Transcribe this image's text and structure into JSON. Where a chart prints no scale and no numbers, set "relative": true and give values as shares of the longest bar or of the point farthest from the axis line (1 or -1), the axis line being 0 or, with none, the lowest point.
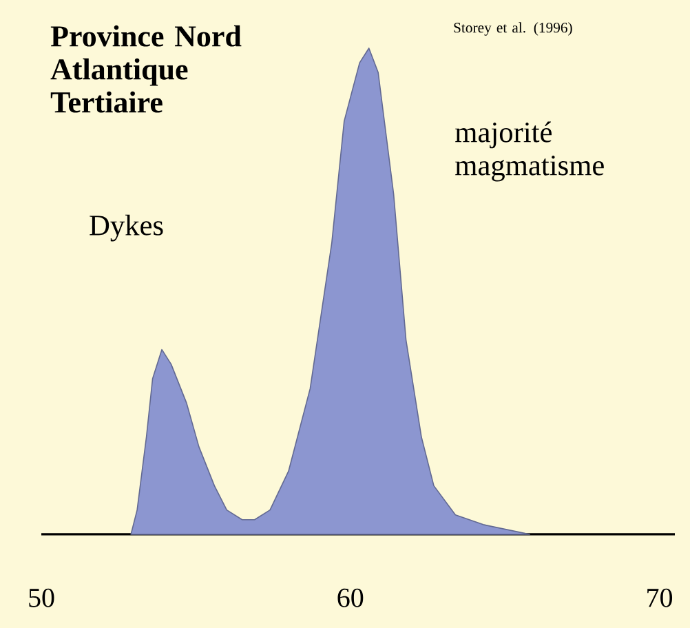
{
  "chart_data": {
    "type": "area",
    "relative": true,
    "title": "Province Nord Atlantique Tertiaire",
    "annotations": [
      "Storey et al. (1996)",
      "Dykes",
      "majorité magmatisme"
    ],
    "x": [
      52.9,
      53.1,
      53.4,
      53.6,
      53.9,
      54.2,
      54.7,
      55.1,
      55.6,
      56.0,
      56.5,
      56.9,
      57.4,
      58.0,
      58.7,
      59.4,
      59.8,
      60.3,
      60.6,
      60.9,
      61.4,
      61.8,
      62.3,
      62.7,
      63.4,
      64.3,
      65.8
    ],
    "values": [
      0,
      0.05,
      0.2,
      0.32,
      0.38,
      0.35,
      0.27,
      0.18,
      0.1,
      0.05,
      0.03,
      0.03,
      0.05,
      0.13,
      0.3,
      0.6,
      0.85,
      0.97,
      1,
      0.95,
      0.7,
      0.4,
      0.2,
      0.1,
      0.04,
      0.02,
      0
    ],
    "color": "#8c96d0",
    "xlim": [
      50,
      70.5
    ],
    "xticks": [
      50,
      60,
      70
    ]
  }
}
